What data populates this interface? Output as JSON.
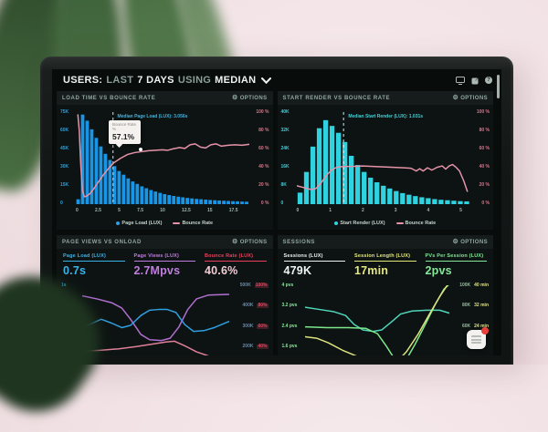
{
  "ui": {
    "title": {
      "users": "USERS:",
      "last": "LAST",
      "days": "7 DAYS",
      "using": "USING",
      "median": "MEDIAN"
    },
    "options_label": "OPTIONS",
    "icons": {
      "gear": "⚙",
      "help": "?"
    },
    "colors": {
      "accent_blue": "#1995e6",
      "accent_cyan": "#2fd2de",
      "accent_pink": "#e693a9",
      "badge_red": "#e8413c"
    }
  },
  "panels": {
    "load_time": {
      "title": "LOAD TIME VS BOUNCE RATE",
      "y_left": [
        "75K",
        "60K",
        "45K",
        "30K",
        "15K",
        "0"
      ],
      "y_right": [
        "100 %",
        "80 %",
        "60 %",
        "40 %",
        "20 %",
        "0 %"
      ],
      "x_ticks": [
        "0",
        "2.5",
        "5",
        "7.5",
        "10",
        "12.5",
        "15",
        "17.5"
      ],
      "axis_colors": {
        "left": "#2f9fd8",
        "right": "#d8768e"
      },
      "median_label": "Median Page Load (LUX): 3.056s",
      "median_label_color": "#3fb4e0",
      "tooltip": {
        "label": "Bounce Rate",
        "sub": "%",
        "value": "57.1%"
      },
      "legend": [
        {
          "label": "Page Load (LUX)",
          "color": "#2d9fe8",
          "marker": "dot"
        },
        {
          "label": "Bounce Rate",
          "color": "#e693a9",
          "marker": "line"
        }
      ],
      "chart": {
        "type": "histogram+line",
        "bar_color": "#1995e6",
        "bar_max": 75,
        "bars": [
          4,
          73,
          68,
          61,
          54,
          47,
          41,
          36,
          31,
          27,
          24,
          21,
          18.5,
          16.5,
          14.5,
          13,
          11.5,
          10.3,
          9.2,
          8.2,
          7.4,
          6.7,
          6.1,
          5.6,
          5.1,
          4.7,
          4.3,
          4,
          3.7,
          3.4,
          3.2,
          3,
          2.8,
          2.6,
          2.4,
          2.3,
          2.1,
          2
        ],
        "median_x": 0.215,
        "median_color": "#cfe4ef",
        "lines": [
          {
            "name": "Bounce Rate",
            "color": "#e693a9",
            "points": [
              [
                0.012,
                0.97
              ],
              [
                0.02,
                0.8
              ],
              [
                0.028,
                0.45
              ],
              [
                0.038,
                0.15
              ],
              [
                0.05,
                0.08
              ],
              [
                0.065,
                0.09
              ],
              [
                0.085,
                0.12
              ],
              [
                0.105,
                0.17
              ],
              [
                0.13,
                0.24
              ],
              [
                0.16,
                0.32
              ],
              [
                0.19,
                0.39
              ],
              [
                0.22,
                0.45
              ],
              [
                0.26,
                0.5
              ],
              [
                0.3,
                0.54
              ],
              [
                0.34,
                0.56
              ],
              [
                0.38,
                0.571
              ],
              [
                0.42,
                0.58
              ],
              [
                0.46,
                0.585
              ],
              [
                0.5,
                0.59
              ],
              [
                0.53,
                0.585
              ],
              [
                0.56,
                0.6
              ],
              [
                0.6,
                0.615
              ],
              [
                0.63,
                0.605
              ],
              [
                0.66,
                0.645
              ],
              [
                0.69,
                0.655
              ],
              [
                0.72,
                0.62
              ],
              [
                0.75,
                0.61
              ],
              [
                0.78,
                0.645
              ],
              [
                0.81,
                0.655
              ],
              [
                0.84,
                0.63
              ],
              [
                0.88,
                0.64
              ],
              [
                0.92,
                0.645
              ],
              [
                0.96,
                0.64
              ],
              [
                1,
                0.65
              ]
            ]
          }
        ]
      }
    },
    "start_render": {
      "title": "START RENDER VS BOUNCE RATE",
      "y_left": [
        "40K",
        "32K",
        "24K",
        "16K",
        "8K",
        "0"
      ],
      "y_right": [
        "100 %",
        "80 %",
        "60 %",
        "40 %",
        "20 %",
        "0 %"
      ],
      "x_ticks": [
        "0",
        "1",
        "2",
        "3",
        "4",
        "5"
      ],
      "axis_colors": {
        "left": "#3ecbd8",
        "right": "#d8768e"
      },
      "median_label": "Median Start Render (LUX): 1.031s",
      "median_label_color": "#45cfd6",
      "legend": [
        {
          "label": "Start Render (LUX)",
          "color": "#2fd2de",
          "marker": "dot"
        },
        {
          "label": "Bounce Rate",
          "color": "#e693a9",
          "marker": "line"
        }
      ],
      "chart": {
        "type": "histogram+line",
        "bar_color": "#2fd2de",
        "bar_max": 40,
        "bars": [
          5,
          14,
          25,
          33,
          36.5,
          34,
          31,
          27,
          21,
          17,
          14,
          11.5,
          9.5,
          8,
          6.8,
          5.7,
          4.8,
          4.1,
          3.5,
          3,
          2.6,
          2.2,
          1.9,
          1.7,
          1.5,
          1.3,
          1.2
        ],
        "median_x": 0.27,
        "median_color": "#cfeef0",
        "lines": [
          {
            "name": "Bounce Rate",
            "color": "#e693a9",
            "points": [
              [
                0,
                0.2
              ],
              [
                0.04,
                0.18
              ],
              [
                0.08,
                0.16
              ],
              [
                0.11,
                0.17
              ],
              [
                0.14,
                0.23
              ],
              [
                0.17,
                0.31
              ],
              [
                0.2,
                0.37
              ],
              [
                0.23,
                0.4
              ],
              [
                0.27,
                0.41
              ],
              [
                0.32,
                0.41
              ],
              [
                0.38,
                0.415
              ],
              [
                0.44,
                0.41
              ],
              [
                0.5,
                0.405
              ],
              [
                0.56,
                0.4
              ],
              [
                0.62,
                0.395
              ],
              [
                0.66,
                0.39
              ],
              [
                0.69,
                0.36
              ],
              [
                0.71,
                0.385
              ],
              [
                0.73,
                0.36
              ],
              [
                0.755,
                0.395
              ],
              [
                0.78,
                0.37
              ],
              [
                0.81,
                0.4
              ],
              [
                0.84,
                0.415
              ],
              [
                0.86,
                0.38
              ],
              [
                0.88,
                0.415
              ],
              [
                0.9,
                0.43
              ],
              [
                0.92,
                0.4
              ],
              [
                0.94,
                0.36
              ],
              [
                0.965,
                0.25
              ],
              [
                0.985,
                0.14
              ]
            ]
          }
        ]
      }
    },
    "page_views": {
      "title": "PAGE VIEWS VS ONLOAD",
      "metrics": [
        {
          "label": "Page Load (LUX)",
          "value": "0.7s",
          "color": "#3ab4e8",
          "value_color": "#3ab4e8"
        },
        {
          "label": "Page Views (LUX)",
          "value": "2.7Mpvs",
          "color": "#c17de0",
          "value_color": "#c17de0"
        },
        {
          "label": "Bounce Rate (LUX)",
          "value": "40.6%",
          "color": "#e8415e",
          "value_color": "#f2ccd6"
        }
      ],
      "y_left": [
        "1s",
        "0.8s",
        "0.6s",
        "0.4s"
      ],
      "y_left_color": "#3ab4e8",
      "y_right_pairs": [
        [
          "500K",
          "100%"
        ],
        [
          "400K",
          "80%"
        ],
        [
          "300K",
          "60%"
        ],
        [
          "200K",
          "40%"
        ]
      ],
      "y_right_colors": [
        "#6b8aa8",
        "#e8415e"
      ],
      "chart": {
        "type": "sparklines",
        "lines": [
          {
            "name": "Page Views",
            "color": "#b06fd0",
            "points": [
              [
                0,
                0.86
              ],
              [
                0.1,
                0.82
              ],
              [
                0.2,
                0.77
              ],
              [
                0.27,
                0.7
              ],
              [
                0.33,
                0.55
              ],
              [
                0.4,
                0.35
              ],
              [
                0.46,
                0.28
              ],
              [
                0.54,
                0.27
              ],
              [
                0.6,
                0.3
              ],
              [
                0.66,
                0.45
              ],
              [
                0.72,
                0.68
              ],
              [
                0.78,
                0.82
              ],
              [
                0.86,
                0.87
              ],
              [
                1,
                0.88
              ]
            ]
          },
          {
            "name": "Page Load",
            "color": "#2f9fe0",
            "points": [
              [
                0,
                0.44
              ],
              [
                0.07,
                0.5
              ],
              [
                0.13,
                0.55
              ],
              [
                0.2,
                0.5
              ],
              [
                0.27,
                0.44
              ],
              [
                0.33,
                0.47
              ],
              [
                0.4,
                0.6
              ],
              [
                0.46,
                0.67
              ],
              [
                0.52,
                0.68
              ],
              [
                0.58,
                0.68
              ],
              [
                0.64,
                0.64
              ],
              [
                0.7,
                0.48
              ],
              [
                0.76,
                0.39
              ],
              [
                0.83,
                0.4
              ],
              [
                0.9,
                0.44
              ],
              [
                1,
                0.52
              ]
            ]
          },
          {
            "name": "Bounce Rate",
            "color": "#e08098",
            "points": [
              [
                0,
                0.13
              ],
              [
                0.12,
                0.14
              ],
              [
                0.25,
                0.16
              ],
              [
                0.37,
                0.19
              ],
              [
                0.47,
                0.22
              ],
              [
                0.57,
                0.25
              ],
              [
                0.63,
                0.26
              ],
              [
                0.7,
                0.2
              ],
              [
                0.78,
                0.12
              ],
              [
                0.87,
                0.06
              ],
              [
                1,
                0.02
              ]
            ]
          }
        ]
      }
    },
    "sessions": {
      "title": "SESSIONS",
      "metrics": [
        {
          "label": "Sessions (LUX)",
          "value": "479K",
          "color": "#eef4f2",
          "value_color": "#eef4f2"
        },
        {
          "label": "Session Length (LUX)",
          "value": "17min",
          "color": "#e6e87c",
          "value_color": "#e6e87c"
        },
        {
          "label": "PVs Per Session (LUX)",
          "value": "2pvs",
          "color": "#86e89a",
          "value_color": "#86e89a"
        }
      ],
      "y_left": [
        "4 pvs",
        "3.2 pvs",
        "2.4 pvs",
        "1.6 pvs"
      ],
      "y_left_color": "#86e89a",
      "y_right_pairs": [
        [
          "100K",
          "40 min"
        ],
        [
          "80K",
          "32 min"
        ],
        [
          "60K",
          "24 min"
        ],
        [
          "40K",
          ""
        ]
      ],
      "y_right_colors": [
        "#9ab8a0",
        "#dfe08a"
      ],
      "chart": {
        "type": "sparklines",
        "lines": [
          {
            "name": "PVs Per Session",
            "color": "#4fd6b8",
            "points": [
              [
                0,
                0.71
              ],
              [
                0.1,
                0.68
              ],
              [
                0.2,
                0.65
              ],
              [
                0.28,
                0.6
              ],
              [
                0.34,
                0.48
              ],
              [
                0.4,
                0.41
              ],
              [
                0.47,
                0.39
              ],
              [
                0.53,
                0.41
              ],
              [
                0.6,
                0.52
              ],
              [
                0.66,
                0.62
              ],
              [
                0.74,
                0.66
              ],
              [
                0.84,
                0.67
              ],
              [
                0.93,
                0.67
              ],
              [
                1,
                0.63
              ]
            ]
          },
          {
            "name": "Sessions",
            "color": "#7de88c",
            "points": [
              [
                0,
                0.45
              ],
              [
                0.15,
                0.44
              ],
              [
                0.3,
                0.44
              ],
              [
                0.42,
                0.43
              ],
              [
                0.5,
                0.36
              ],
              [
                0.56,
                0.2
              ],
              [
                0.62,
                0.02
              ],
              [
                0.66,
                -0.05
              ],
              [
                0.7,
                0.02
              ],
              [
                0.76,
                0.22
              ],
              [
                0.83,
                0.48
              ],
              [
                0.9,
                0.75
              ],
              [
                0.96,
                0.95
              ],
              [
                1,
                1.02
              ]
            ]
          },
          {
            "name": "Session Length",
            "color": "#dde27f",
            "points": [
              [
                0,
                0.32
              ],
              [
                0.08,
                0.3
              ],
              [
                0.16,
                0.24
              ],
              [
                0.26,
                0.14
              ],
              [
                0.36,
                0.06
              ],
              [
                0.46,
                -0.02
              ],
              [
                0.55,
                -0.08
              ],
              [
                0.63,
                -0.02
              ],
              [
                0.7,
                0.12
              ],
              [
                0.78,
                0.35
              ],
              [
                0.86,
                0.62
              ],
              [
                0.93,
                0.85
              ],
              [
                1,
                1.05
              ]
            ]
          }
        ]
      }
    }
  }
}
